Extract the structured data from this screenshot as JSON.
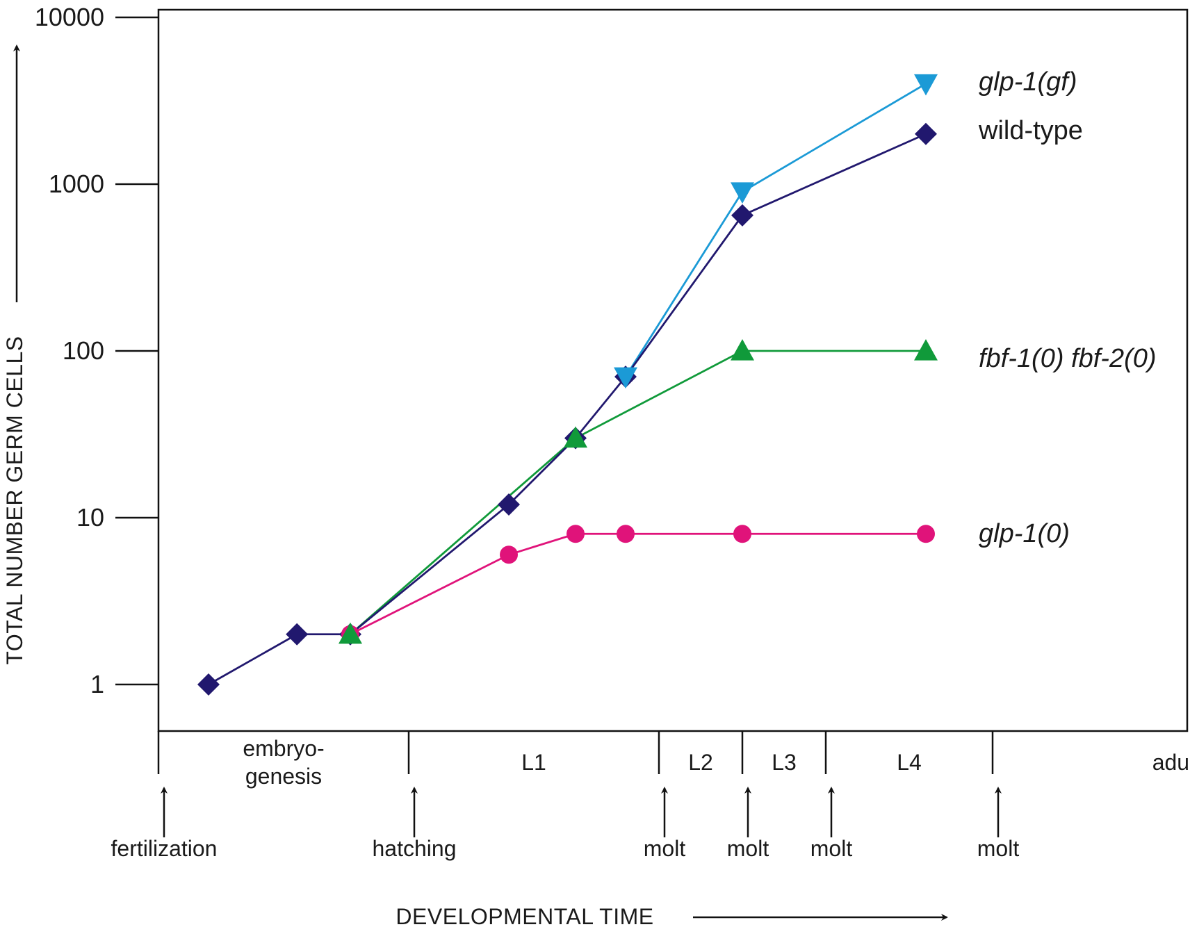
{
  "chart_data": {
    "type": "line",
    "title": "",
    "xlabel": "DEVELOPMENTAL TIME",
    "ylabel": "TOTAL NUMBER GERM CELLS",
    "yscale": "log",
    "ylim": [
      1,
      10000
    ],
    "yticks": [
      "1",
      "10",
      "100",
      "1000",
      "10000"
    ],
    "grid": false,
    "legend": "inline labels at right end of each series",
    "stages": [
      {
        "label": "embryo-\ngenesis",
        "lines": [
          "embryo-",
          "genesis"
        ],
        "x": 0.75
      },
      {
        "label": "L1",
        "lines": [
          "L1"
        ],
        "x": 2.25
      },
      {
        "label": "L2",
        "lines": [
          "L2"
        ],
        "x": 3.25
      },
      {
        "label": "L3",
        "lines": [
          "L3"
        ],
        "x": 3.75
      },
      {
        "label": "L4",
        "lines": [
          "L4"
        ],
        "x": 4.5
      },
      {
        "label": "adulthood",
        "lines": [
          "adulthood"
        ],
        "x": 6.25
      }
    ],
    "events": [
      {
        "label": "fertilization",
        "x": 0
      },
      {
        "label": "hatching",
        "x": 1.5
      },
      {
        "label": "molt",
        "x": 3
      },
      {
        "label": "molt",
        "x": 3.5
      },
      {
        "label": "molt",
        "x": 4
      },
      {
        "label": "molt",
        "x": 5
      }
    ],
    "xlim": [
      0,
      7.5
    ],
    "series": [
      {
        "name": "wild-type",
        "italic": false,
        "color": "#21186e",
        "marker": "diamond",
        "x": [
          0.3,
          0.83,
          1.15,
          2.1,
          2.5,
          2.8,
          3.5,
          4.6
        ],
        "y": [
          1,
          2,
          2,
          12,
          30,
          70,
          650,
          2000
        ]
      },
      {
        "name": "glp-1(gf)",
        "italic": true,
        "color": "#1b9ad6",
        "marker": "triangle-down",
        "x": [
          2.8,
          3.5,
          4.6
        ],
        "y": [
          70,
          900,
          4000
        ]
      },
      {
        "name": "fbf-1(0) fbf-2(0)",
        "italic": true,
        "color": "#109a3a",
        "marker": "triangle-up",
        "x": [
          1.15,
          2.5,
          3.5,
          4.6
        ],
        "y": [
          2,
          30,
          100,
          100
        ]
      },
      {
        "name": "glp-1(0)",
        "italic": true,
        "color": "#e0137a",
        "marker": "circle",
        "x": [
          1.15,
          2.1,
          2.5,
          2.8,
          3.5,
          4.6
        ],
        "y": [
          2,
          6,
          8,
          8,
          8,
          8
        ]
      }
    ]
  }
}
